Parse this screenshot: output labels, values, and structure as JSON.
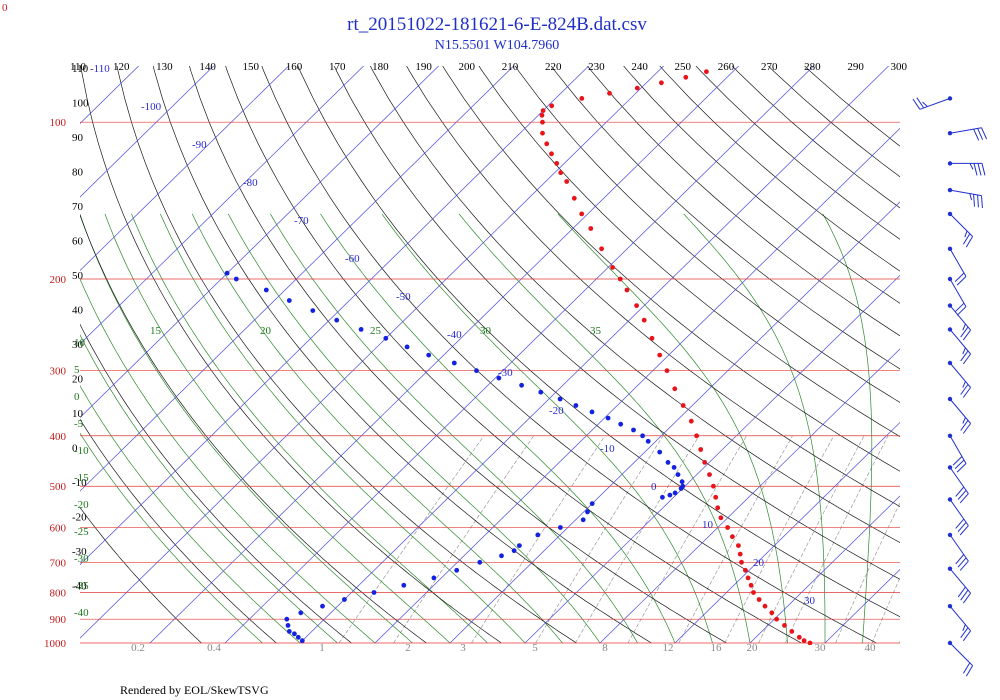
{
  "chart_data": {
    "type": "scatter",
    "subtype": "skew-t log-p",
    "title": "rt_20151022-181621-6-E-824B.dat.csv",
    "subtitle": "N15.5501 W104.7960",
    "footer": "Rendered by EOL/SkewTSVG",
    "corner_label": "0",
    "pressure_levels": [
      100,
      200,
      300,
      400,
      500,
      600,
      700,
      800,
      900,
      1000
    ],
    "pressure_range": [
      78,
      1000
    ],
    "top_temperature_labels": [
      110,
      120,
      130,
      140,
      150,
      160,
      170,
      180,
      190,
      200,
      210,
      220,
      230,
      240,
      250,
      260,
      270,
      280,
      290,
      300
    ],
    "dry_adiabat_labels": [
      110,
      100,
      90,
      80,
      70,
      60,
      50,
      40,
      30,
      20,
      10,
      0,
      -10,
      -20,
      -30,
      -40
    ],
    "isotherm_labels": [
      -110,
      -100,
      -90,
      -80,
      -70,
      -60,
      -50,
      -40,
      -30,
      -20,
      -10,
      0,
      10,
      20,
      30
    ],
    "moist_adiabat_labels": [
      10,
      5,
      0,
      -5,
      -10,
      -15,
      -20,
      -25,
      -30,
      -35,
      -40,
      15,
      20,
      25,
      30,
      35
    ],
    "mixing_ratio_labels": [
      "0.2",
      "0.4",
      "1",
      "2",
      "3",
      "5",
      "8",
      "12",
      "16",
      "20",
      "30",
      "40"
    ],
    "colors": {
      "temperature": "#e8141a",
      "dewpoint": "#1322e0",
      "isotherm": "#4b4be0",
      "isobar": "#e23a3a",
      "dry_adiabat": "#1a1a1a",
      "moist_adiabat": "#2d8a2d",
      "mixing_ratio": "#9a9a9a",
      "wind": "#2030d0"
    },
    "series": [
      {
        "name": "temperature",
        "points": [
          [
            1000,
            28.0
          ],
          [
            990,
            26.9
          ],
          [
            975,
            25.8
          ],
          [
            950,
            24.0
          ],
          [
            925,
            22.2
          ],
          [
            900,
            20.3
          ],
          [
            875,
            18.8
          ],
          [
            850,
            17.0
          ],
          [
            825,
            15.3
          ],
          [
            800,
            13.6
          ],
          [
            775,
            12.3
          ],
          [
            750,
            10.9
          ],
          [
            725,
            9.5
          ],
          [
            700,
            7.9
          ],
          [
            675,
            6.6
          ],
          [
            650,
            5.2
          ],
          [
            625,
            3.2
          ],
          [
            600,
            1.3
          ],
          [
            575,
            -0.9
          ],
          [
            550,
            -2.7
          ],
          [
            525,
            -4.4
          ],
          [
            500,
            -6.2
          ],
          [
            475,
            -8.3
          ],
          [
            450,
            -10.6
          ],
          [
            425,
            -12.9
          ],
          [
            400,
            -15.3
          ],
          [
            375,
            -18.0
          ],
          [
            350,
            -21.2
          ],
          [
            325,
            -24.6
          ],
          [
            300,
            -28.1
          ],
          [
            280,
            -31.2
          ],
          [
            260,
            -34.5
          ],
          [
            240,
            -38.0
          ],
          [
            225,
            -41.0
          ],
          [
            210,
            -44.4
          ],
          [
            200,
            -46.8
          ],
          [
            190,
            -49.4
          ],
          [
            175,
            -53.4
          ],
          [
            160,
            -57.6
          ],
          [
            150,
            -60.8
          ],
          [
            140,
            -63.9
          ],
          [
            130,
            -67.2
          ],
          [
            125,
            -69.2
          ],
          [
            120,
            -71.0
          ],
          [
            115,
            -73.0
          ],
          [
            110,
            -75.0
          ],
          [
            105,
            -77.0
          ],
          [
            100,
            -78.5
          ],
          [
            97,
            -79.5
          ],
          [
            95,
            -80.0
          ],
          [
            93,
            -79.5
          ],
          [
            90,
            -76.5
          ],
          [
            88,
            -73.5
          ],
          [
            86,
            -70.5
          ],
          [
            84,
            -68.0
          ],
          [
            82,
            -65.5
          ],
          [
            80,
            -63.5
          ]
        ]
      },
      {
        "name": "dewpoint",
        "points": [
          [
            990,
            -40.0
          ],
          [
            975,
            -41.0
          ],
          [
            960,
            -42.0
          ],
          [
            950,
            -43.0
          ],
          [
            925,
            -44.0
          ],
          [
            900,
            -45.0
          ],
          [
            875,
            -44.0
          ],
          [
            850,
            -42.0
          ],
          [
            825,
            -40.0
          ],
          [
            800,
            -37.0
          ],
          [
            775,
            -34.0
          ],
          [
            750,
            -31.0
          ],
          [
            725,
            -29.0
          ],
          [
            700,
            -27.0
          ],
          [
            680,
            -25.0
          ],
          [
            665,
            -24.0
          ],
          [
            650,
            -24.0
          ],
          [
            620,
            -23.0
          ],
          [
            600,
            -21.0
          ],
          [
            580,
            -19.0
          ],
          [
            560,
            -19.5
          ],
          [
            540,
            -20.0
          ],
          [
            525,
            -11.5
          ],
          [
            520,
            -10.8
          ],
          [
            515,
            -10.4
          ],
          [
            505,
            -10.2
          ],
          [
            500,
            -10.3
          ],
          [
            490,
            -11.0
          ],
          [
            475,
            -12.5
          ],
          [
            460,
            -14.0
          ],
          [
            450,
            -15.5
          ],
          [
            430,
            -18.0
          ],
          [
            410,
            -21.0
          ],
          [
            400,
            -22.5
          ],
          [
            390,
            -24.5
          ],
          [
            380,
            -27.0
          ],
          [
            370,
            -29.5
          ],
          [
            360,
            -32.5
          ],
          [
            350,
            -35.5
          ],
          [
            340,
            -38.5
          ],
          [
            330,
            -42.0
          ],
          [
            320,
            -45.5
          ],
          [
            310,
            -49.5
          ],
          [
            300,
            -53.5
          ],
          [
            290,
            -57.5
          ],
          [
            280,
            -62.0
          ],
          [
            270,
            -66.0
          ],
          [
            260,
            -70.0
          ],
          [
            250,
            -74.5
          ],
          [
            240,
            -79.0
          ],
          [
            230,
            -83.5
          ],
          [
            220,
            -88.0
          ],
          [
            210,
            -92.5
          ],
          [
            200,
            -98.0
          ],
          [
            195,
            -100.0
          ]
        ]
      }
    ],
    "wind_barbs": [
      {
        "p": 90,
        "speed_kt": 25,
        "dir": 250
      },
      {
        "p": 105,
        "speed_kt": 30,
        "dir": 80
      },
      {
        "p": 120,
        "speed_kt": 35,
        "dir": 90
      },
      {
        "p": 135,
        "speed_kt": 35,
        "dir": 100
      },
      {
        "p": 150,
        "speed_kt": 25,
        "dir": 135
      },
      {
        "p": 175,
        "speed_kt": 20,
        "dir": 150
      },
      {
        "p": 200,
        "speed_kt": 20,
        "dir": 150
      },
      {
        "p": 225,
        "speed_kt": 25,
        "dir": 140
      },
      {
        "p": 250,
        "speed_kt": 25,
        "dir": 140
      },
      {
        "p": 290,
        "speed_kt": 25,
        "dir": 140
      },
      {
        "p": 340,
        "speed_kt": 25,
        "dir": 140
      },
      {
        "p": 400,
        "speed_kt": 30,
        "dir": 150
      },
      {
        "p": 460,
        "speed_kt": 30,
        "dir": 145
      },
      {
        "p": 530,
        "speed_kt": 30,
        "dir": 145
      },
      {
        "p": 620,
        "speed_kt": 30,
        "dir": 145
      },
      {
        "p": 720,
        "speed_kt": 30,
        "dir": 140
      },
      {
        "p": 850,
        "speed_kt": 25,
        "dir": 140
      },
      {
        "p": 1000,
        "speed_kt": 20,
        "dir": 135
      }
    ]
  }
}
